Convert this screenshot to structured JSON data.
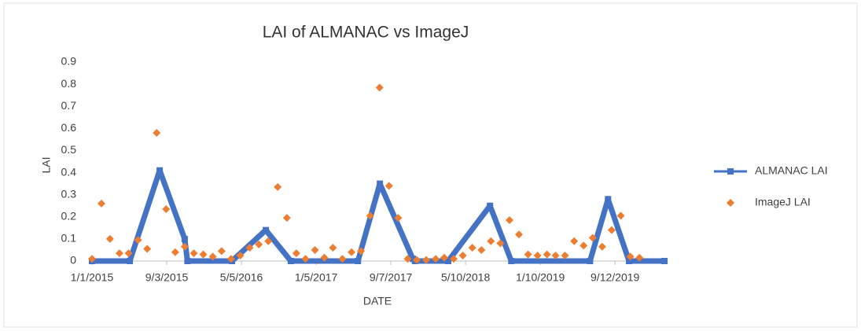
{
  "chart_data": {
    "type": "line",
    "title": "LAI of ALMANAC vs ImageJ",
    "x_label": "DATE",
    "y_label": "LAI",
    "xlim": [
      "2015-01-01",
      "2020-02-21"
    ],
    "xticks": [
      {
        "value": "2015-01-01",
        "label": "1/1/2015"
      },
      {
        "value": "2015-09-03",
        "label": "9/3/2015"
      },
      {
        "value": "2016-05-05",
        "label": "5/5/2016"
      },
      {
        "value": "2017-01-05",
        "label": "1/5/2017"
      },
      {
        "value": "2017-09-07",
        "label": "9/7/2017"
      },
      {
        "value": "2018-05-10",
        "label": "5/10/2018"
      },
      {
        "value": "2019-01-10",
        "label": "1/10/2019"
      },
      {
        "value": "2019-09-12",
        "label": "9/12/2019"
      }
    ],
    "ylim": [
      0,
      0.9
    ],
    "yticks": [
      0,
      0.1,
      0.2,
      0.3,
      0.4,
      0.5,
      0.6,
      0.7,
      0.8,
      0.9
    ],
    "grid": false,
    "legend": "right",
    "series": [
      {
        "name": "ALMANAC LAI",
        "type": "line",
        "marker": "square",
        "color": "#4472c4",
        "x": [
          "2015-01-01",
          "2015-05-05",
          "2015-08-11",
          "2015-11-01",
          "2015-11-10",
          "2016-04-04",
          "2016-07-24",
          "2016-10-14",
          "2017-05-22",
          "2017-08-02",
          "2017-11-18",
          "2017-11-25",
          "2018-03-14",
          "2018-07-29",
          "2018-10-07",
          "2019-06-22",
          "2019-08-20",
          "2019-10-28",
          "2020-02-21"
        ],
        "values": [
          0,
          0,
          0.41,
          0.1,
          0,
          0,
          0.14,
          0,
          0,
          0.35,
          0.01,
          0,
          0,
          0.25,
          0,
          0,
          0.28,
          0,
          0
        ]
      },
      {
        "name": "ImageJ LAI",
        "type": "scatter",
        "marker": "diamond",
        "color": "#ed7d31",
        "x": [
          "2015-01-01",
          "2015-02-01",
          "2015-03-01",
          "2015-04-01",
          "2015-05-01",
          "2015-06-01",
          "2015-07-01",
          "2015-08-01",
          "2015-09-01",
          "2015-10-01",
          "2015-11-01",
          "2015-12-01",
          "2016-01-01",
          "2016-02-01",
          "2016-03-01",
          "2016-04-01",
          "2016-05-01",
          "2016-06-01",
          "2016-07-01",
          "2016-08-01",
          "2016-09-01",
          "2016-10-01",
          "2016-11-01",
          "2016-12-01",
          "2017-01-01",
          "2017-02-01",
          "2017-03-01",
          "2017-04-01",
          "2017-05-01",
          "2017-06-01",
          "2017-07-01",
          "2017-08-01",
          "2017-09-01",
          "2017-10-01",
          "2017-11-01",
          "2017-12-01",
          "2018-01-01",
          "2018-02-01",
          "2018-03-01",
          "2018-04-01",
          "2018-05-01",
          "2018-06-01",
          "2018-07-01",
          "2018-08-01",
          "2018-09-01",
          "2018-10-01",
          "2018-11-01",
          "2018-12-01",
          "2019-01-01",
          "2019-02-01",
          "2019-03-01",
          "2019-04-01",
          "2019-05-01",
          "2019-06-01",
          "2019-07-01",
          "2019-08-01",
          "2019-09-01",
          "2019-10-01",
          "2019-11-01",
          "2019-12-01"
        ],
        "values": [
          0.01,
          0.26,
          0.1,
          0.035,
          0.035,
          0.095,
          0.055,
          0.58,
          0.235,
          0.04,
          0.065,
          0.035,
          0.03,
          0.02,
          0.045,
          0.01,
          0.025,
          0.06,
          0.075,
          0.09,
          0.335,
          0.195,
          0.035,
          0.01,
          0.05,
          0.015,
          0.06,
          0.01,
          0.04,
          0.045,
          0.205,
          0.785,
          0.34,
          0.195,
          0.01,
          0.005,
          0.005,
          0.01,
          0.015,
          0.01,
          0.025,
          0.06,
          0.05,
          0.09,
          0.08,
          0.185,
          0.12,
          0.03,
          0.025,
          0.03,
          0.025,
          0.025,
          0.09,
          0.07,
          0.105,
          0.065,
          0.14,
          0.205,
          0.02,
          0.015
        ]
      }
    ]
  }
}
